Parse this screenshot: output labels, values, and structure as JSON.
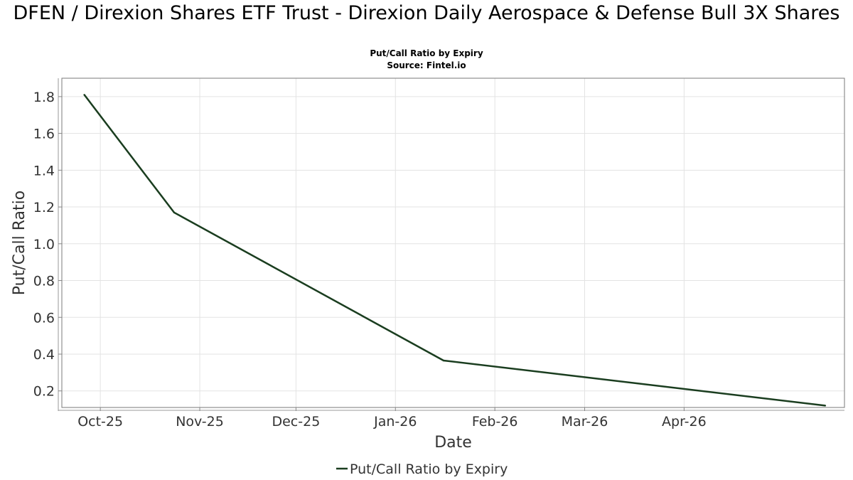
{
  "chart_data": {
    "type": "line",
    "title": "DFEN / Direxion Shares ETF Trust - Direxion Daily Aerospace & Defense Bull 3X Shares",
    "subtitle": "Put/Call Ratio by Expiry",
    "source": "Source: Fintel.io",
    "xlabel": "Date",
    "ylabel": "Put/Call Ratio",
    "x_ticks": [
      {
        "date": "2025-10-01",
        "label": "Oct-25"
      },
      {
        "date": "2025-11-01",
        "label": "Nov-25"
      },
      {
        "date": "2025-12-01",
        "label": "Dec-25"
      },
      {
        "date": "2026-01-01",
        "label": "Jan-26"
      },
      {
        "date": "2026-02-01",
        "label": "Feb-26"
      },
      {
        "date": "2026-03-01",
        "label": "Mar-26"
      },
      {
        "date": "2026-04-01",
        "label": "Apr-26"
      }
    ],
    "y_ticks": [
      0.2,
      0.4,
      0.6,
      0.8,
      1.0,
      1.2,
      1.4,
      1.6,
      1.8
    ],
    "ylim": [
      0.11,
      1.9
    ],
    "xlim": [
      "2025-09-19",
      "2026-05-21"
    ],
    "grid": true,
    "legend_position": "bottom-center",
    "series": [
      {
        "name": "Put/Call Ratio by Expiry",
        "color": "#1a3d1f",
        "points": [
          {
            "x": "2025-09-26",
            "y": 1.81
          },
          {
            "x": "2025-10-24",
            "y": 1.17
          },
          {
            "x": "2026-01-16",
            "y": 0.365
          },
          {
            "x": "2026-05-15",
            "y": 0.12
          }
        ]
      }
    ]
  }
}
